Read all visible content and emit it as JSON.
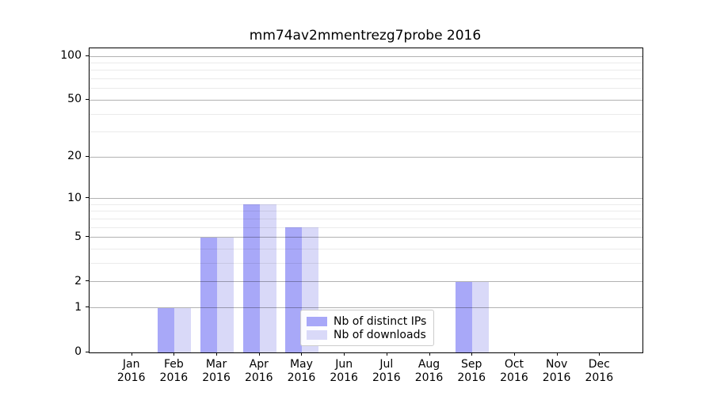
{
  "chart_data": {
    "type": "bar",
    "title": "mm74av2mmentrezg7probe 2016",
    "categories": [
      "Jan",
      "Feb",
      "Mar",
      "Apr",
      "May",
      "Jun",
      "Jul",
      "Aug",
      "Sep",
      "Oct",
      "Nov",
      "Dec"
    ],
    "x_sublabel_year": "2016",
    "series": [
      {
        "name": "Nb of distinct IPs",
        "color": "#a8a8f8",
        "values": [
          0,
          1,
          5,
          9,
          6,
          0,
          0,
          0,
          2,
          0,
          0,
          0
        ]
      },
      {
        "name": "Nb of downloads",
        "color": "#d9d9f8",
        "values": [
          0,
          1,
          5,
          9,
          6,
          0,
          0,
          0,
          2,
          0,
          0,
          0
        ]
      }
    ],
    "y_scale": "log10(1+v)",
    "y_ticks": [
      0,
      1,
      2,
      5,
      10,
      20,
      50,
      100
    ],
    "y_minor_gridlines": [
      3,
      4,
      6,
      7,
      8,
      9,
      30,
      40,
      60,
      70,
      80,
      90
    ],
    "ylim": [
      0,
      113
    ],
    "xlabel": "",
    "ylabel": "",
    "grid": "on",
    "legend_position": "bottom-center-inside"
  }
}
